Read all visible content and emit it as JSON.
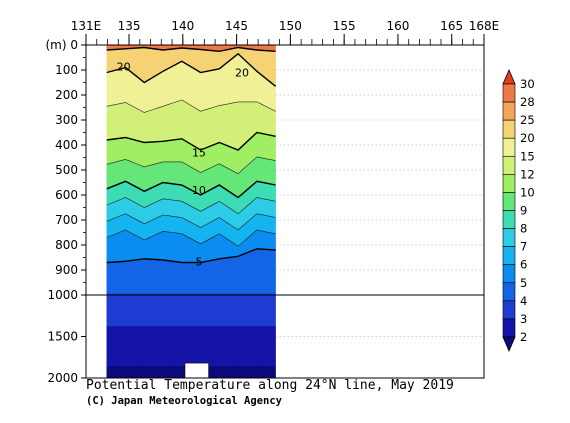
{
  "chart_data": {
    "type": "contour",
    "title": "Potential Temperature along 24°N line, May 2019",
    "credit": "(C) Japan Meteorological Agency",
    "y_unit_label": "(m)",
    "x_ticks": [
      {
        "value": 131,
        "label": "131E"
      },
      {
        "value": 135,
        "label": "135"
      },
      {
        "value": 140,
        "label": "140"
      },
      {
        "value": 145,
        "label": "145"
      },
      {
        "value": 150,
        "label": "150"
      },
      {
        "value": 155,
        "label": "155"
      },
      {
        "value": 160,
        "label": "160"
      },
      {
        "value": 165,
        "label": "165"
      },
      {
        "value": 168,
        "label": "168E"
      }
    ],
    "xlim": [
      131,
      168
    ],
    "data_x_range": [
      132,
      149
    ],
    "y_upper_ticks": [
      0,
      100,
      200,
      300,
      400,
      500,
      600,
      700,
      800,
      900,
      1000
    ],
    "y_lower_ticks": [
      1000,
      1500,
      2000
    ],
    "y_axis_break_depth": 1000,
    "colorbar": {
      "levels": [
        2,
        3,
        4,
        5,
        6,
        7,
        8,
        9,
        10,
        12,
        15,
        20,
        25,
        28,
        30
      ],
      "labels": [
        "2",
        "3",
        "4",
        "5",
        "6",
        "7",
        "8",
        "9",
        "10",
        "12",
        "15",
        "20",
        "25",
        "28",
        "30"
      ],
      "colors": [
        "#0a0a78",
        "#1414a8",
        "#1e3cd2",
        "#1464e6",
        "#0a8cf0",
        "#14b4f0",
        "#2ccce6",
        "#3cdcb4",
        "#64e678",
        "#a0ee64",
        "#d2f078",
        "#f0f096",
        "#f5d273",
        "#f5a55a",
        "#f07846",
        "#e63c1e"
      ]
    },
    "contour_labels": [
      {
        "text": "20",
        "x": 134.5,
        "depth": 85
      },
      {
        "text": "20",
        "x": 145.5,
        "depth": 110
      },
      {
        "text": "15",
        "x": 141.5,
        "depth": 430
      },
      {
        "text": "10",
        "x": 141.5,
        "depth": 580
      },
      {
        "text": "5",
        "x": 141.5,
        "depth": 865
      }
    ],
    "isotherms": [
      {
        "value": 25,
        "x": [
          132,
          134,
          136,
          138,
          140,
          142,
          144,
          146,
          148,
          149
        ],
        "depth": [
          20,
          15,
          10,
          20,
          12,
          18,
          25,
          10,
          20,
          25
        ]
      },
      {
        "value": 20,
        "x": [
          132,
          134,
          136,
          138,
          140,
          142,
          144,
          146,
          148,
          149
        ],
        "depth": [
          110,
          90,
          150,
          105,
          65,
          110,
          95,
          35,
          105,
          165
        ]
      },
      {
        "value": 15,
        "x": [
          132,
          134,
          136,
          138,
          140,
          142,
          144,
          146,
          148,
          149
        ],
        "depth": [
          380,
          370,
          390,
          385,
          375,
          420,
          390,
          420,
          350,
          365
        ]
      },
      {
        "value": 10,
        "x": [
          132,
          134,
          136,
          138,
          140,
          142,
          144,
          146,
          148,
          149
        ],
        "depth": [
          575,
          545,
          585,
          550,
          560,
          600,
          560,
          610,
          545,
          560
        ]
      },
      {
        "value": 5,
        "x": [
          132,
          134,
          136,
          138,
          140,
          142,
          144,
          146,
          148,
          149
        ],
        "depth": [
          870,
          865,
          855,
          860,
          870,
          870,
          855,
          845,
          815,
          820
        ]
      }
    ]
  }
}
